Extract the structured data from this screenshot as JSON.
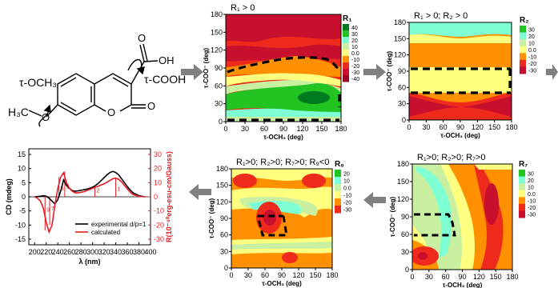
{
  "molecule": {
    "tau_och3": "τ-OCH₃",
    "tau_cooh": "τ-COOH",
    "oh": "OH",
    "o_carbonyl_acid": "O",
    "o_ring": "O",
    "o_lactone": "O",
    "h3c": "H₃C"
  },
  "colors": {
    "red_dark": "#c8102e",
    "red": "#ee2a1c",
    "orange": "#ff9000",
    "yellow": "#ffff80",
    "light_green": "#c8f0a0",
    "cyan": "#7fffd4",
    "green": "#22c422",
    "dark_green": "#007a1e",
    "arrow_gray": "#808080",
    "cd_red": "#e51c23"
  },
  "chart_data": [
    {
      "type": "heatmap",
      "title": "R₁ > 0",
      "xlabel": "τ-OCH₃ (deg)",
      "ylabel": "τ-COO⁻ (deg)",
      "x_ticks": [
        "0",
        "30",
        "60",
        "90",
        "120",
        "150",
        "180"
      ],
      "y_ticks": [
        "0",
        "30",
        "60",
        "90",
        "120",
        "150",
        "180"
      ],
      "xlim": [
        0,
        180
      ],
      "ylim": [
        0,
        180
      ],
      "colorbar": {
        "label": "R₁",
        "ticks": [
          "40",
          "30",
          "20",
          "10",
          "0.0",
          "-10",
          "-20",
          "-30",
          "-40"
        ]
      }
    },
    {
      "type": "heatmap",
      "title": "R₁ > 0; R₂ > 0",
      "xlabel": "τ-OCH₃ (deg)",
      "ylabel": "τ-COO⁻ (deg)",
      "x_ticks": [
        "0",
        "30",
        "60",
        "90",
        "120",
        "150",
        "180"
      ],
      "y_ticks": [
        "0",
        "30",
        "60",
        "90",
        "120",
        "150",
        "180"
      ],
      "xlim": [
        0,
        180
      ],
      "ylim": [
        0,
        180
      ],
      "colorbar": {
        "label": "R₂",
        "ticks": [
          "30",
          "20",
          "10",
          "0.0",
          "-10",
          "-20",
          "-30"
        ]
      }
    },
    {
      "type": "line",
      "xlabel": "λ (nm)",
      "ylabel": "CD (mdeg)",
      "ylabel_right": "R(10⁻⁴⁰erg-esu-cm/Gauss)",
      "x_ticks": [
        "200",
        "220",
        "240",
        "260",
        "280",
        "300",
        "320",
        "340",
        "360",
        "380",
        "400"
      ],
      "y_ticks": [
        "15",
        "10",
        "5",
        "0",
        "-5",
        "-10",
        "-15"
      ],
      "y_ticks_right": [
        "30",
        "20",
        "10",
        "0",
        "-10",
        "-20",
        "-30"
      ],
      "xlim": [
        190,
        400
      ],
      "ylim": [
        -17,
        17
      ],
      "ylim_right": [
        -34,
        34
      ],
      "legend": [
        "experimental d/p=1",
        "calculated"
      ],
      "legend_placement": "bottom-right",
      "series": [
        {
          "name": "experimental d/p=1",
          "x": [
            200,
            210,
            215,
            220,
            225,
            230,
            235,
            240,
            245,
            250,
            255,
            260,
            265,
            270,
            275,
            280,
            285,
            290,
            295,
            300,
            305,
            310,
            315,
            320,
            325,
            330,
            335,
            340,
            345,
            350,
            355,
            360,
            365,
            370,
            380,
            390
          ],
          "y": [
            0,
            0.2,
            0.4,
            0.2,
            -0.5,
            -1.5,
            -2.5,
            -1,
            2,
            6,
            4,
            3,
            2.2,
            2,
            2.1,
            2.3,
            2.5,
            2.7,
            3,
            3.4,
            4,
            4.8,
            5.8,
            6.8,
            7.8,
            8.6,
            9,
            8.6,
            7.8,
            6.4,
            5,
            3.6,
            2.4,
            1.4,
            0.4,
            0
          ]
        },
        {
          "name": "calculated",
          "x": [
            200,
            205,
            210,
            215,
            220,
            225,
            230,
            235,
            240,
            245,
            250,
            255,
            260,
            265,
            270,
            275,
            280,
            285,
            290,
            295,
            300,
            305,
            310,
            315,
            320,
            325,
            330,
            335,
            340,
            345,
            350,
            355,
            360,
            365,
            370,
            380,
            390
          ],
          "y": [
            0,
            -0.5,
            -1.5,
            -4,
            -9,
            -12.5,
            -10,
            -3,
            3,
            7,
            8.5,
            5,
            3,
            2,
            1.4,
            1.4,
            1.6,
            1.8,
            2.2,
            2.6,
            3,
            3.4,
            3.8,
            4.2,
            4.6,
            5.2,
            5.8,
            6.4,
            6.6,
            6.2,
            5.3,
            4,
            2.8,
            1.6,
            0.8,
            0.2,
            0
          ]
        }
      ],
      "stick_labels": [
        "9",
        "7",
        "5",
        "3",
        "2",
        "1"
      ]
    },
    {
      "type": "heatmap",
      "title": "R₁>0; R₂>0; R₇>0; R₉<0",
      "xlabel": "τ-OCH₃ (deg)",
      "ylabel": "τ-COO⁻ (deg)",
      "x_ticks": [
        "0",
        "30",
        "60",
        "90",
        "120",
        "150",
        "180"
      ],
      "y_ticks": [
        "0",
        "30",
        "60",
        "90",
        "120",
        "150",
        "180"
      ],
      "xlim": [
        0,
        180
      ],
      "ylim": [
        0,
        180
      ],
      "colorbar": {
        "label": "R₉",
        "ticks": [
          "20",
          "10",
          "0.0",
          "-10",
          "-20",
          "-30"
        ]
      }
    },
    {
      "type": "heatmap",
      "title": "R₁>0; R₂>0; R₇>0",
      "xlabel": "τ-OCH₃ (deg)",
      "ylabel": "τ-COO⁻ (deg)",
      "x_ticks": [
        "0",
        "30",
        "60",
        "90",
        "120",
        "150",
        "180"
      ],
      "y_ticks": [
        "0",
        "30",
        "60",
        "90",
        "120",
        "150",
        "180"
      ],
      "xlim": [
        0,
        180
      ],
      "ylim": [
        0,
        180
      ],
      "colorbar": {
        "label": "R₇",
        "ticks": [
          "30",
          "20",
          "10",
          "0.0",
          "-10",
          "-20",
          "-30"
        ]
      }
    }
  ]
}
